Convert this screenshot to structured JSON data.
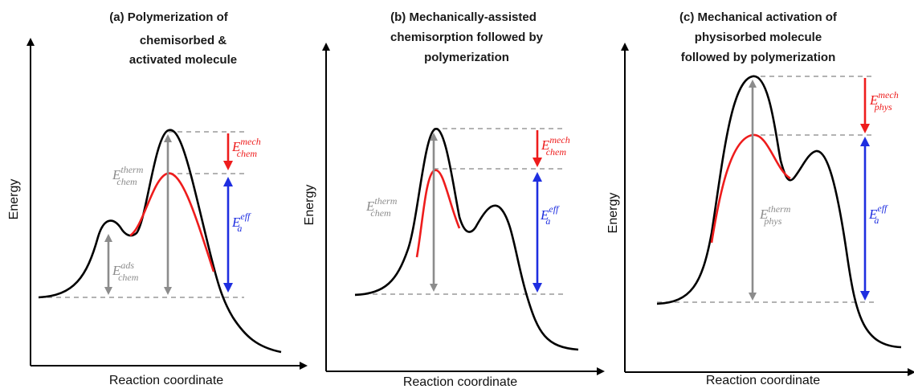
{
  "panels": [
    {
      "id": "a",
      "title_lines": [
        "(a)  Polymerization of",
        "chemisorbed &",
        "activated molecule"
      ],
      "ylabel": "Energy",
      "xlabel": "Reaction coordinate",
      "gray_label": {
        "base": "E",
        "sup": "therm",
        "sub": "chem"
      },
      "gray_label_2": {
        "base": "E",
        "sup": "ads",
        "sub": "chem"
      },
      "red_label": {
        "base": "E",
        "sup": "mech",
        "sub": "chem"
      },
      "blue_label": {
        "base": "E",
        "sup": "eff",
        "sub": "a"
      }
    },
    {
      "id": "b",
      "title_lines": [
        "(b)  Mechanically-assisted",
        "chemisorption followed by",
        "polymerization"
      ],
      "ylabel": "Energy",
      "xlabel": "Reaction coordinate",
      "gray_label": {
        "base": "E",
        "sup": "therm",
        "sub": "chem"
      },
      "red_label": {
        "base": "E",
        "sup": "mech",
        "sub": "chem"
      },
      "blue_label": {
        "base": "E",
        "sup": "eff",
        "sub": "a"
      }
    },
    {
      "id": "c",
      "title_lines": [
        "(c)  Mechanical activation of",
        "physisorbed molecule",
        "followed by polymerization"
      ],
      "ylabel": "Energy",
      "xlabel": "Reaction coordinate",
      "gray_label": {
        "base": "E",
        "sup": "therm",
        "sub": "phys"
      },
      "red_label": {
        "base": "E",
        "sup": "mech",
        "sub": "phys"
      },
      "blue_label": {
        "base": "E",
        "sup": "eff",
        "sub": "a"
      }
    }
  ],
  "colors": {
    "curve": "#000000",
    "mechanical_curve": "#ee1c1c",
    "mechanical_arrow": "#ee1c1c",
    "effective_arrow": "#1e2ee0",
    "thermal_arrow": "#8c8c8c",
    "guide_lines": "#9a9a9a"
  }
}
